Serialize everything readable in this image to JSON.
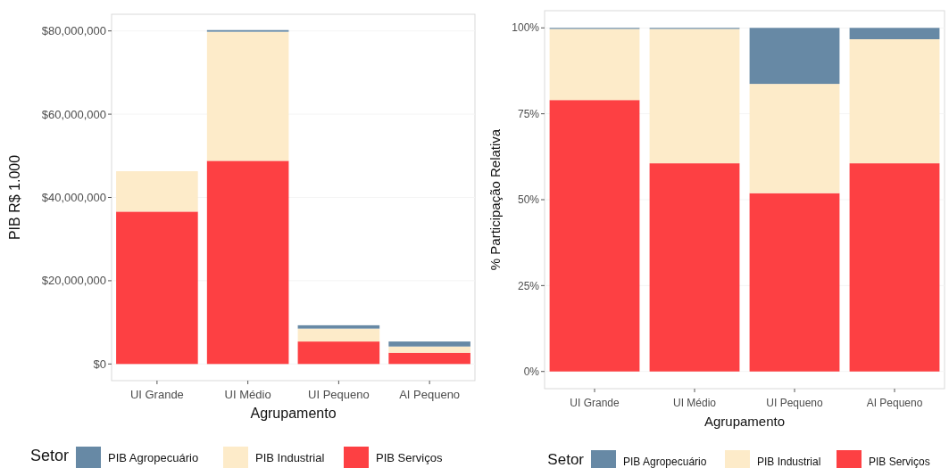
{
  "chart_data": [
    {
      "type": "bar",
      "stacked": true,
      "categories": [
        "UI Grande",
        "UI Médio",
        "UI Pequeno",
        "AI Pequeno"
      ],
      "xlabel": "Agrupamento",
      "ylabel": "PIB R$ 1.000",
      "legend_title": "Setor",
      "legend": "bottom",
      "grid": true,
      "ylim": [
        -4000000,
        84000000
      ],
      "yticks": [
        {
          "value": 0,
          "label": "$0"
        },
        {
          "value": 20000000,
          "label": "$20,000,000"
        },
        {
          "value": 40000000,
          "label": "$40,000,000"
        },
        {
          "value": 60000000,
          "label": "$60,000,000"
        },
        {
          "value": 80000000,
          "label": "$80,000,000"
        }
      ],
      "series": [
        {
          "name": "PIB Serviços",
          "color": "#fd4043",
          "values": [
            36600000,
            48800000,
            5400000,
            2700000
          ]
        },
        {
          "name": "PIB Industrial",
          "color": "#fdebc9",
          "values": [
            9700000,
            31000000,
            3100000,
            1500000
          ]
        },
        {
          "name": "PIB Agropecuário",
          "color": "#6789a5",
          "values": [
            null,
            400000,
            800000,
            1200000
          ]
        }
      ]
    },
    {
      "type": "bar",
      "stacked": true,
      "categories": [
        "UI Grande",
        "UI Médio",
        "UI Pequeno",
        "AI Pequeno"
      ],
      "xlabel": "Agrupamento",
      "ylabel": "% Participação Relativa",
      "legend_title": "Setor",
      "legend": "bottom",
      "grid": true,
      "ylim": [
        -5,
        105
      ],
      "yticks": [
        {
          "value": 0,
          "label": "0%"
        },
        {
          "value": 25,
          "label": "25%"
        },
        {
          "value": 50,
          "label": "50%"
        },
        {
          "value": 75,
          "label": "75%"
        },
        {
          "value": 100,
          "label": "100%"
        }
      ],
      "series": [
        {
          "name": "PIB Serviços",
          "color": "#fd4043",
          "values": [
            79.0,
            60.6,
            51.9,
            60.6
          ]
        },
        {
          "name": "PIB Industrial",
          "color": "#fdebc9",
          "values": [
            20.7,
            39.1,
            31.8,
            36.1
          ]
        },
        {
          "name": "PIB Agropecuário",
          "color": "#6789a5",
          "values": [
            0.3,
            0.3,
            16.3,
            3.3
          ]
        }
      ]
    }
  ]
}
